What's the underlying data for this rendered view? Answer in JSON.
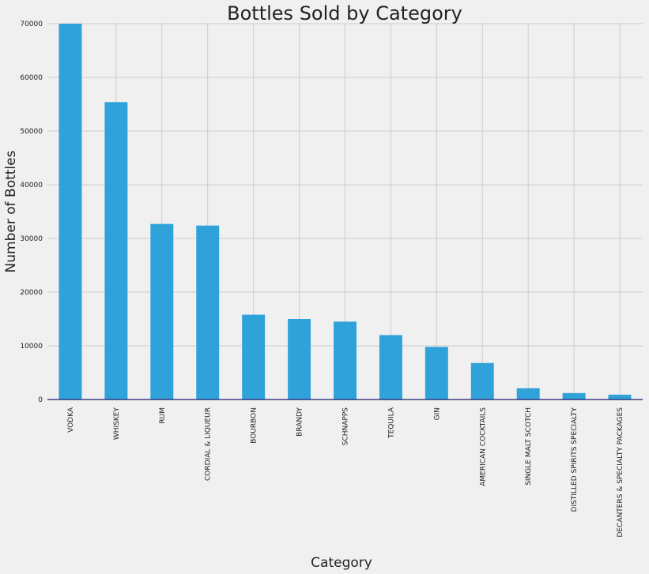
{
  "chart_data": {
    "type": "bar",
    "title": "Bottles Sold by Category",
    "xlabel": "Category",
    "ylabel": "Number of Bottles",
    "categories": [
      "VODKA",
      "WHISKEY",
      "RUM",
      "CORDIAL & LIQUEUR",
      "BOURBON",
      "BRANDY",
      "SCHNAPPS",
      "TEQUILA",
      "GIN",
      "AMERICAN COCKTAILS",
      "SINGLE MALT SCOTCH",
      "DISTILLED SPIRITS SPECIALTY",
      "DECANTERS & SPECIALTY PACKAGES"
    ],
    "values": [
      70000,
      55400,
      32700,
      32400,
      15800,
      15000,
      14500,
      12000,
      9800,
      6800,
      2100,
      1200,
      900
    ],
    "ylim": [
      0,
      70000
    ],
    "yticks": [
      0,
      10000,
      20000,
      30000,
      40000,
      50000,
      60000,
      70000
    ],
    "grid": true,
    "bar_color": "#30a2da",
    "background_color": "#f0f0f0"
  }
}
